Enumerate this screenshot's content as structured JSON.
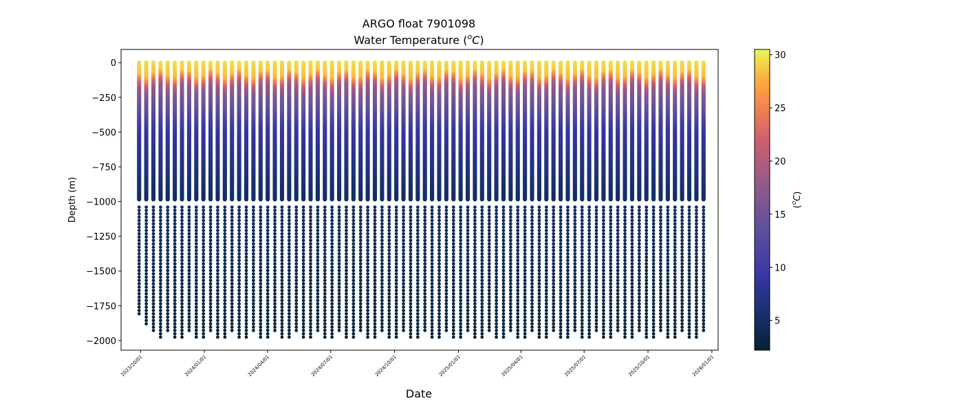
{
  "chart_data": {
    "type": "scatter",
    "title": "ARGO float 7901098",
    "subtitle_prefix": "Water Temperature (",
    "subtitle_unit_sup": "o",
    "subtitle_unit_main": "C",
    "subtitle_suffix": ")",
    "xlabel": "Date",
    "ylabel": "Depth (m)",
    "colorbar_label_prefix": "(",
    "colorbar_label_sup": "o",
    "colorbar_label_main": "C",
    "colorbar_label_suffix": ")",
    "xlim": [
      "2023-09-03",
      "2026-01-10"
    ],
    "ylim": [
      -2070,
      95
    ],
    "x_ticks": [
      {
        "date": "2023-10-01",
        "label": "2023/10/01"
      },
      {
        "date": "2024-01-01",
        "label": "2024/01/01"
      },
      {
        "date": "2024-04-01",
        "label": "2024/04/01"
      },
      {
        "date": "2024-07-01",
        "label": "2024/07/01"
      },
      {
        "date": "2024-10-01",
        "label": "2024/10/01"
      },
      {
        "date": "2025-01-01",
        "label": "2025/01/01"
      },
      {
        "date": "2025-04-01",
        "label": "2025/04/01"
      },
      {
        "date": "2025-07-01",
        "label": "2025/07/01"
      },
      {
        "date": "2025-10-01",
        "label": "2025/10/01"
      },
      {
        "date": "2026-01-01",
        "label": "2026/01/01"
      }
    ],
    "y_ticks": [
      {
        "value": 0,
        "label": "0"
      },
      {
        "value": -250,
        "label": "−250"
      },
      {
        "value": -500,
        "label": "−500"
      },
      {
        "value": -750,
        "label": "−750"
      },
      {
        "value": -1000,
        "label": "−1000"
      },
      {
        "value": -1250,
        "label": "−1250"
      },
      {
        "value": -1500,
        "label": "−1500"
      },
      {
        "value": -1750,
        "label": "−1750"
      },
      {
        "value": -2000,
        "label": "−2000"
      }
    ],
    "colorbar": {
      "range": [
        2.2,
        30.5
      ],
      "colormap": "thermal",
      "ticks": [
        {
          "value": 5,
          "label": "5"
        },
        {
          "value": 10,
          "label": "10"
        },
        {
          "value": 15,
          "label": "15"
        },
        {
          "value": 20,
          "label": "20"
        },
        {
          "value": 25,
          "label": "25"
        },
        {
          "value": 30,
          "label": "30"
        }
      ]
    },
    "profiles": {
      "first_date": "2023-09-29",
      "last_date": "2025-12-20",
      "count": 80,
      "surface_temperature": 29.5,
      "mixed_layer_depth": [
        55,
        120
      ],
      "temp_at_200m": 15,
      "temp_at_500m": 9,
      "temp_at_1000m": 4.8,
      "temp_at_2000m": 2.6,
      "dense_sampling_bottom": -990,
      "sparse_levels_start": -1040,
      "sparse_level_spacing": 24,
      "max_depth": -1975,
      "max_depth_first_profiles": [
        -1830,
        -1880,
        -1930
      ]
    }
  }
}
